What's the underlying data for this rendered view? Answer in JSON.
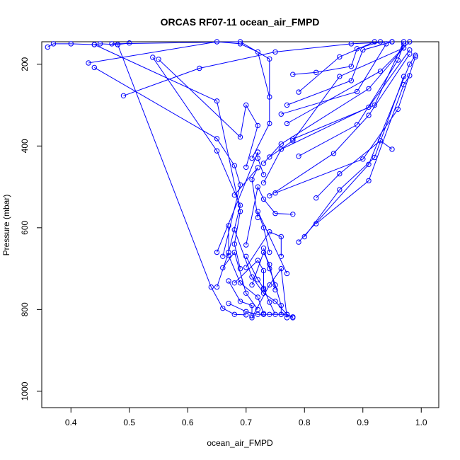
{
  "chart_data": {
    "type": "line",
    "title": "ORCAS RF07-11 ocean_air_FMPD",
    "xlabel": "ocean_air_FMPD",
    "ylabel": "Pressure (mbar)",
    "xlim": [
      0.35,
      1.03
    ],
    "ylim": [
      1040,
      145
    ],
    "y_reversed": true,
    "xticks": [
      0.4,
      0.5,
      0.6,
      0.7,
      0.8,
      0.9,
      1.0
    ],
    "xtick_labels": [
      "0.4",
      "0.5",
      "0.6",
      "0.7",
      "0.8",
      "0.9",
      "1.0"
    ],
    "yticks": [
      200,
      400,
      600,
      800,
      1000
    ],
    "ytick_labels": [
      "200",
      "400",
      "600",
      "800",
      "1000"
    ],
    "grid": false,
    "series_color": "#0000ff",
    "marker": "open-circle",
    "series": [
      {
        "points": [
          [
            0.36,
            158
          ],
          [
            0.37,
            150
          ],
          [
            0.4,
            150
          ],
          [
            0.44,
            152
          ],
          [
            0.45,
            150
          ],
          [
            0.48,
            152
          ],
          [
            0.5,
            148
          ]
        ]
      },
      {
        "points": [
          [
            0.49,
            277
          ],
          [
            0.62,
            210
          ],
          [
            0.75,
            170
          ],
          [
            0.88,
            150
          ],
          [
            0.95,
            145
          ]
        ]
      },
      {
        "points": [
          [
            0.43,
            197
          ],
          [
            0.65,
            145
          ],
          [
            0.69,
            150
          ],
          [
            0.72,
            170
          ],
          [
            0.74,
            280
          ]
        ]
      },
      {
        "points": [
          [
            0.44,
            208
          ],
          [
            0.65,
            382
          ],
          [
            0.68,
            448
          ],
          [
            0.69,
            495
          ],
          [
            0.66,
            670
          ]
        ]
      },
      {
        "points": [
          [
            0.54,
            183
          ],
          [
            0.65,
            412
          ],
          [
            0.69,
            545
          ],
          [
            0.67,
            660
          ],
          [
            0.65,
            745
          ]
        ]
      },
      {
        "points": [
          [
            0.55,
            188
          ],
          [
            0.69,
            378
          ],
          [
            0.7,
            300
          ],
          [
            0.72,
            350
          ],
          [
            0.7,
            452
          ]
        ]
      },
      {
        "points": [
          [
            0.47,
            150
          ],
          [
            0.69,
            145
          ],
          [
            0.74,
            187
          ],
          [
            0.74,
            345
          ],
          [
            0.71,
            430
          ]
        ]
      },
      {
        "points": [
          [
            0.44,
            152
          ],
          [
            0.65,
            290
          ],
          [
            0.69,
            560
          ],
          [
            0.68,
            640
          ],
          [
            0.69,
            700
          ]
        ]
      },
      {
        "points": [
          [
            0.48,
            152
          ],
          [
            0.64,
            745
          ],
          [
            0.66,
            797
          ],
          [
            0.68,
            812
          ],
          [
            0.7,
            813
          ]
        ]
      },
      {
        "points": [
          [
            0.78,
            225
          ],
          [
            0.82,
            220
          ],
          [
            0.88,
            205
          ],
          [
            0.89,
            162
          ],
          [
            0.93,
            145
          ]
        ]
      },
      {
        "points": [
          [
            0.79,
            268
          ],
          [
            0.86,
            182
          ],
          [
            0.92,
            145
          ]
        ]
      },
      {
        "points": [
          [
            0.77,
            300
          ],
          [
            0.88,
            240
          ],
          [
            0.9,
            165
          ],
          [
            0.95,
            145
          ]
        ]
      },
      {
        "points": [
          [
            0.76,
            322
          ],
          [
            0.89,
            267
          ],
          [
            0.94,
            150
          ]
        ]
      },
      {
        "points": [
          [
            0.77,
            345
          ],
          [
            0.93,
            217
          ],
          [
            0.98,
            145
          ]
        ]
      },
      {
        "points": [
          [
            0.78,
            383
          ],
          [
            0.92,
            300
          ],
          [
            0.97,
            145
          ]
        ]
      },
      {
        "points": [
          [
            0.79,
            425
          ],
          [
            0.89,
            348
          ],
          [
            0.96,
            190
          ],
          [
            0.97,
            150
          ]
        ]
      },
      {
        "points": [
          [
            0.74,
            427
          ],
          [
            0.78,
            387
          ],
          [
            0.86,
            230
          ],
          [
            0.97,
            160
          ]
        ]
      },
      {
        "points": [
          [
            0.73,
            442
          ],
          [
            0.76,
            395
          ],
          [
            0.91,
            260
          ],
          [
            0.97,
            160
          ]
        ]
      },
      {
        "points": [
          [
            0.73,
            490
          ],
          [
            0.76,
            408
          ],
          [
            0.91,
            305
          ],
          [
            0.98,
            165
          ]
        ]
      },
      {
        "points": [
          [
            0.74,
            522
          ],
          [
            0.85,
            418
          ],
          [
            0.91,
            325
          ],
          [
            0.98,
            175
          ]
        ]
      },
      {
        "points": [
          [
            0.75,
            515
          ],
          [
            0.9,
            432
          ],
          [
            0.96,
            310
          ],
          [
            0.99,
            182
          ]
        ]
      },
      {
        "points": [
          [
            0.82,
            527
          ],
          [
            0.86,
            468
          ],
          [
            0.93,
            387
          ],
          [
            0.95,
            408
          ]
        ]
      },
      {
        "points": [
          [
            0.82,
            590
          ],
          [
            0.91,
            485
          ],
          [
            0.97,
            250
          ],
          [
            0.98,
            228
          ]
        ]
      },
      {
        "points": [
          [
            0.8,
            622
          ],
          [
            0.86,
            507
          ],
          [
            0.92,
            428
          ],
          [
            0.97,
            230
          ]
        ]
      },
      {
        "points": [
          [
            0.79,
            635
          ],
          [
            0.91,
            445
          ],
          [
            0.98,
            200
          ],
          [
            0.99,
            178
          ]
        ]
      },
      {
        "points": [
          [
            0.77,
            712
          ],
          [
            0.72,
            560
          ],
          [
            0.73,
            600
          ],
          [
            0.74,
            660
          ]
        ]
      },
      {
        "points": [
          [
            0.7,
            642
          ],
          [
            0.72,
            500
          ],
          [
            0.73,
            530
          ],
          [
            0.75,
            565
          ],
          [
            0.78,
            567
          ]
        ]
      },
      {
        "points": [
          [
            0.65,
            660
          ],
          [
            0.72,
            415
          ],
          [
            0.72,
            430
          ],
          [
            0.73,
            470
          ]
        ]
      },
      {
        "points": [
          [
            0.68,
            520
          ],
          [
            0.72,
            453
          ],
          [
            0.71,
            482
          ],
          [
            0.72,
            575
          ]
        ]
      },
      {
        "points": [
          [
            0.7,
            697
          ],
          [
            0.74,
            610
          ],
          [
            0.76,
            622
          ],
          [
            0.76,
            670
          ]
        ]
      },
      {
        "points": [
          [
            0.71,
            740
          ],
          [
            0.73,
            660
          ],
          [
            0.74,
            690
          ],
          [
            0.75,
            752
          ]
        ]
      },
      {
        "points": [
          [
            0.68,
            735
          ],
          [
            0.72,
            680
          ],
          [
            0.73,
            705
          ],
          [
            0.73,
            752
          ]
        ]
      },
      {
        "points": [
          [
            0.66,
            698
          ],
          [
            0.68,
            660
          ],
          [
            0.7,
            760
          ],
          [
            0.72,
            800
          ]
        ]
      },
      {
        "points": [
          [
            0.67,
            595
          ],
          [
            0.67,
            668
          ],
          [
            0.69,
            735
          ],
          [
            0.72,
            770
          ],
          [
            0.73,
            810
          ]
        ]
      },
      {
        "points": [
          [
            0.67,
            730
          ],
          [
            0.69,
            780
          ],
          [
            0.71,
            790
          ],
          [
            0.71,
            815
          ]
        ]
      },
      {
        "points": [
          [
            0.7,
            670
          ],
          [
            0.72,
            727
          ],
          [
            0.73,
            748
          ],
          [
            0.74,
            782
          ],
          [
            0.75,
            812
          ]
        ]
      },
      {
        "points": [
          [
            0.67,
            785
          ],
          [
            0.7,
            805
          ],
          [
            0.72,
            812
          ],
          [
            0.73,
            812
          ],
          [
            0.74,
            812
          ],
          [
            0.76,
            812
          ],
          [
            0.77,
            812
          ],
          [
            0.78,
            818
          ]
        ]
      },
      {
        "points": [
          [
            0.68,
            605
          ],
          [
            0.71,
            720
          ],
          [
            0.73,
            760
          ],
          [
            0.75,
            780
          ],
          [
            0.77,
            812
          ],
          [
            0.78,
            820
          ]
        ]
      },
      {
        "points": [
          [
            0.73,
            650
          ],
          [
            0.74,
            700
          ],
          [
            0.75,
            740
          ],
          [
            0.76,
            790
          ],
          [
            0.76,
            812
          ]
        ]
      },
      {
        "points": [
          [
            0.71,
            820
          ],
          [
            0.74,
            740
          ],
          [
            0.76,
            700
          ],
          [
            0.77,
            820
          ]
        ]
      }
    ]
  }
}
